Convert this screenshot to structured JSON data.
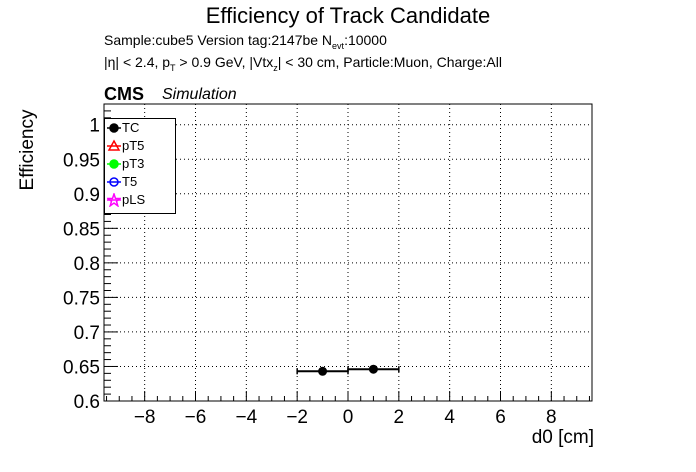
{
  "chart_data": {
    "type": "scatter",
    "title": "Efficiency of Track Candidate",
    "subtitle_1": {
      "pre": "Sample:cube5   Version tag:2147be  N",
      "sub": "evt",
      "post": ":10000"
    },
    "subtitle_2": {
      "p1": "|η| < 2.4, p",
      "s1": "T",
      "p2": " > 0.9 GeV, |Vtx",
      "s2": "z",
      "p3": "| < 30 cm, Particle:Muon, Charge:All"
    },
    "cms_label": "CMS",
    "simulation_label": "Simulation",
    "xlabel": "d0 [cm]",
    "ylabel": "Efficiency",
    "xlim": [
      -9.6,
      9.6
    ],
    "ylim": [
      0.6,
      1.03
    ],
    "x_ticks": [
      {
        "v": -8,
        "label": "−8"
      },
      {
        "v": -6,
        "label": "−6"
      },
      {
        "v": -4,
        "label": "−4"
      },
      {
        "v": -2,
        "label": "−2"
      },
      {
        "v": 0,
        "label": "0"
      },
      {
        "v": 2,
        "label": "2"
      },
      {
        "v": 4,
        "label": "4"
      },
      {
        "v": 6,
        "label": "6"
      },
      {
        "v": 8,
        "label": "8"
      }
    ],
    "y_ticks": [
      {
        "v": 0.6,
        "label": "0.6"
      },
      {
        "v": 0.65,
        "label": "0.65"
      },
      {
        "v": 0.7,
        "label": "0.7"
      },
      {
        "v": 0.75,
        "label": "0.75"
      },
      {
        "v": 0.8,
        "label": "0.8"
      },
      {
        "v": 0.85,
        "label": "0.85"
      },
      {
        "v": 0.9,
        "label": "0.9"
      },
      {
        "v": 0.95,
        "label": "0.95"
      },
      {
        "v": 1.0,
        "label": "1"
      }
    ],
    "grid": true,
    "legend_position": "top-left",
    "series": [
      {
        "name": "TC",
        "color": "#000000",
        "marker": "filled-circle",
        "points": [
          {
            "x": -1,
            "y": 0.643,
            "xerr": 1
          },
          {
            "x": 1,
            "y": 0.646,
            "xerr": 1
          }
        ]
      },
      {
        "name": "pT5",
        "color": "#ff0000",
        "marker": "open-triangle",
        "points": []
      },
      {
        "name": "pT3",
        "color": "#00ff00",
        "marker": "filled-circle",
        "points": []
      },
      {
        "name": "T5",
        "color": "#0000ff",
        "marker": "open-circle",
        "points": []
      },
      {
        "name": "pLS",
        "color": "#ff00ff",
        "marker": "open-star",
        "points": []
      }
    ]
  }
}
